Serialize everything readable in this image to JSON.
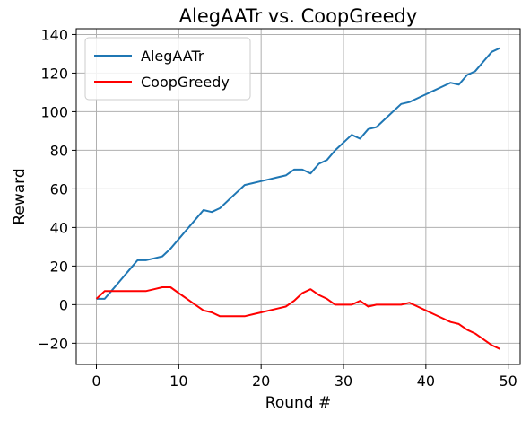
{
  "chart_data": {
    "type": "line",
    "title": "AlegAATr vs. CoopGreedy",
    "xlabel": "Round #",
    "ylabel": "Reward",
    "xlim": [
      -2.45,
      51.45
    ],
    "ylim": [
      -31,
      143
    ],
    "xticks": [
      0,
      10,
      20,
      30,
      40,
      50
    ],
    "yticks": [
      -20,
      0,
      20,
      40,
      60,
      80,
      100,
      120,
      140
    ],
    "grid": true,
    "legend_position": "top-left",
    "series": [
      {
        "name": "AlegAATr",
        "color": "#1f77b4",
        "x": [
          0,
          1,
          2,
          3,
          4,
          5,
          6,
          7,
          8,
          9,
          10,
          11,
          12,
          13,
          14,
          15,
          16,
          17,
          18,
          19,
          20,
          21,
          22,
          23,
          24,
          25,
          26,
          27,
          28,
          29,
          30,
          31,
          32,
          33,
          34,
          35,
          36,
          37,
          38,
          39,
          40,
          41,
          42,
          43,
          44,
          45,
          46,
          47,
          48,
          49
        ],
        "y": [
          3,
          3,
          8,
          13,
          18,
          23,
          23,
          24,
          25,
          29,
          34,
          39,
          44,
          49,
          48,
          50,
          54,
          58,
          62,
          63,
          64,
          65,
          66,
          67,
          70,
          70,
          68,
          73,
          75,
          80,
          84,
          88,
          86,
          91,
          92,
          96,
          100,
          104,
          105,
          107,
          109,
          111,
          113,
          115,
          114,
          119,
          121,
          126,
          131,
          133
        ]
      },
      {
        "name": "CoopGreedy",
        "color": "#ff0000",
        "x": [
          0,
          1,
          2,
          3,
          4,
          5,
          6,
          7,
          8,
          9,
          10,
          11,
          12,
          13,
          14,
          15,
          16,
          17,
          18,
          19,
          20,
          21,
          22,
          23,
          24,
          25,
          26,
          27,
          28,
          29,
          30,
          31,
          32,
          33,
          34,
          35,
          36,
          37,
          38,
          39,
          40,
          41,
          42,
          43,
          44,
          45,
          46,
          47,
          48,
          49
        ],
        "y": [
          3,
          7,
          7,
          7,
          7,
          7,
          7,
          8,
          9,
          9,
          6,
          3,
          0,
          -3,
          -4,
          -6,
          -6,
          -6,
          -6,
          -5,
          -4,
          -3,
          -2,
          -1,
          2,
          6,
          8,
          5,
          3,
          0,
          0,
          0,
          2,
          -1,
          0,
          0,
          0,
          0,
          1,
          -1,
          -3,
          -5,
          -7,
          -9,
          -10,
          -13,
          -15,
          -18,
          -21,
          -23
        ]
      }
    ]
  }
}
